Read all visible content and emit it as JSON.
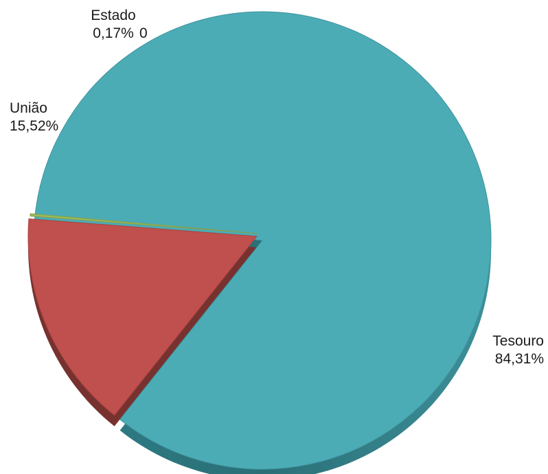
{
  "chart_data": {
    "type": "pie",
    "slices": [
      {
        "name": "Tesouro",
        "label": "84,31%",
        "value": 84.31,
        "color": "#4bacb6"
      },
      {
        "name": "União",
        "label": "15,52%",
        "value": 15.52,
        "color": "#c0504d"
      },
      {
        "name": "Estado",
        "label": "0,17%",
        "value": 0.17,
        "color": "#9bbb59"
      }
    ],
    "extra_labels": [
      "0"
    ],
    "exploded": true,
    "three_d": true
  }
}
